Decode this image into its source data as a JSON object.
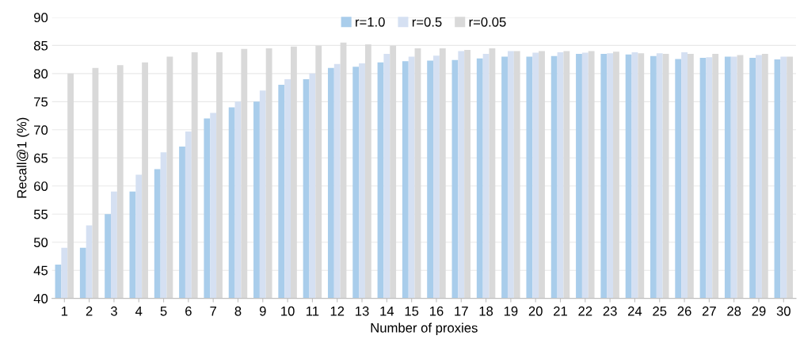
{
  "chart_data": {
    "type": "bar",
    "xlabel": "Number of proxies",
    "ylabel": "Recall@1 (%)",
    "categories": [
      "1",
      "2",
      "3",
      "4",
      "5",
      "6",
      "7",
      "8",
      "9",
      "10",
      "11",
      "12",
      "13",
      "14",
      "15",
      "16",
      "17",
      "18",
      "19",
      "20",
      "21",
      "22",
      "23",
      "24",
      "25",
      "26",
      "27",
      "28",
      "29",
      "30"
    ],
    "series": [
      {
        "name": "r=1.0",
        "color": "#a9cdeb",
        "values": [
          46,
          49,
          55,
          59,
          63,
          67,
          72,
          74,
          75,
          78,
          79,
          81,
          81.2,
          82,
          82.2,
          82.3,
          82.4,
          82.7,
          83,
          83,
          83.1,
          83.5,
          83.5,
          83.4,
          83.1,
          82.6,
          82.8,
          83,
          82.8,
          82.5
        ]
      },
      {
        "name": "r=0.5",
        "color": "#d5e0f2",
        "values": [
          49,
          53,
          59,
          62,
          66,
          69.7,
          73,
          75,
          77,
          79,
          80,
          81.7,
          81.8,
          83.5,
          83,
          83.2,
          84,
          83.5,
          84,
          83.7,
          83.8,
          83.7,
          83.6,
          83.8,
          83.6,
          83.8,
          82.9,
          83,
          83.3,
          83
        ]
      },
      {
        "name": "r=0.05",
        "color": "#d9d9d9",
        "values": [
          80,
          81,
          81.5,
          82,
          83,
          83.8,
          83.8,
          84.4,
          84.5,
          84.8,
          85,
          85.5,
          85.2,
          85,
          84.5,
          84.5,
          84.2,
          84.5,
          84,
          84,
          84,
          84,
          83.9,
          83.6,
          83.5,
          83.5,
          83.5,
          83.3,
          83.5,
          83
        ]
      }
    ],
    "ylim": [
      40,
      90
    ],
    "yticks": [
      40,
      45,
      50,
      55,
      60,
      65,
      70,
      75,
      80,
      85,
      90
    ],
    "grid": "y",
    "legend": "top"
  }
}
